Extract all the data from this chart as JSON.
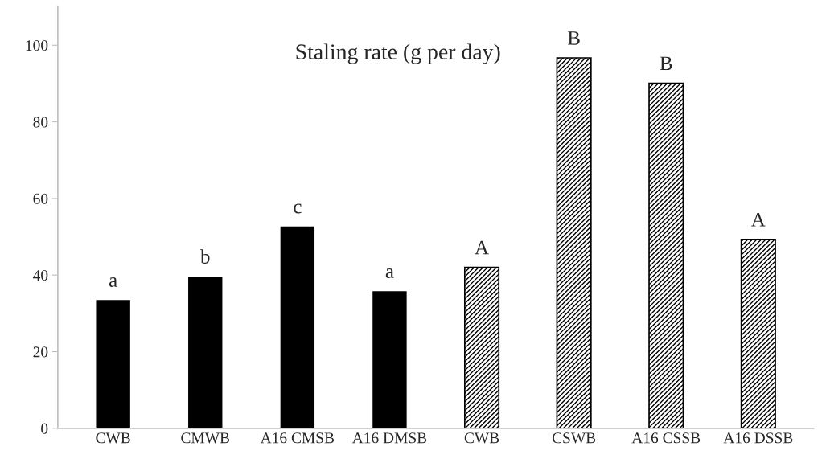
{
  "chart_data": {
    "type": "bar",
    "title": "Staling rate (g per day)",
    "categories": [
      "CWB",
      "CMWB",
      "A16 CMSB",
      "A16 DMSB",
      "CWB",
      "CSWB",
      "A16 CSSB",
      "A16 DSSB"
    ],
    "series": [
      {
        "color": "#000000",
        "values": [
          33.5,
          39.6,
          52.7,
          35.8,
          null,
          null,
          null,
          null
        ],
        "value_labels": [
          "a",
          "b",
          "c",
          "a",
          null,
          null,
          null,
          null
        ]
      },
      {
        "color": "#000000",
        "values": [
          null,
          null,
          null,
          null,
          42.0,
          96.7,
          90.1,
          49.3
        ],
        "value_labels": [
          null,
          null,
          null,
          null,
          "A",
          "B",
          "B",
          "A"
        ]
      }
    ],
    "ylim": [
      0,
      110
    ],
    "yticks": [
      0,
      20,
      40,
      60,
      80,
      100
    ]
  }
}
